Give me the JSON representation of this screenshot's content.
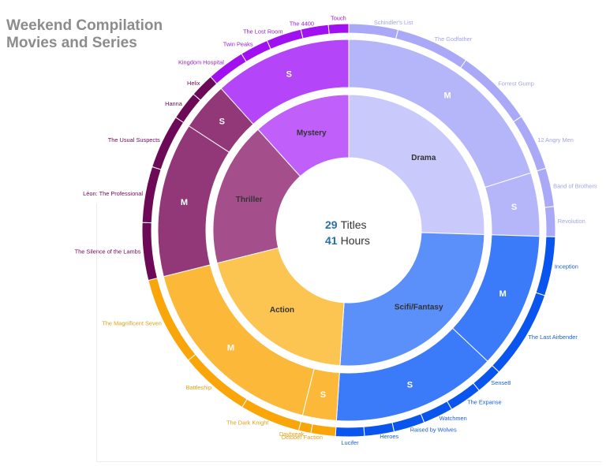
{
  "header": {
    "title_line1": "Weekend Compilation",
    "title_line2": "Movies and Series"
  },
  "center": {
    "titles_count": "29",
    "titles_label": "Titles",
    "hours_count": "41",
    "hours_label": "Hours",
    "number_color": "#2b6f9e"
  },
  "chart_data": {
    "type": "sunburst",
    "title": "Weekend Compilation Movies and Series",
    "rings": [
      "genre",
      "type",
      "title"
    ],
    "genres": [
      {
        "name": "Drama",
        "inner_color": "#c9c9fb",
        "type_color": "#b5b5fa",
        "outer_color": "#a9a9f7",
        "label_color": "#a3a3e8",
        "groups": [
          {
            "type": "M",
            "titles": [
              "Schindler's List",
              "The Godfather",
              "Forrest Gump",
              "12 Angry Men"
            ]
          },
          {
            "type": "S",
            "titles": [
              "Band of Brothers",
              "Revolution"
            ]
          }
        ]
      },
      {
        "name": "Scifi/Fantasy",
        "inner_color": "#5b8ff9",
        "type_color": "#3b7af8",
        "outer_color": "#0a55ee",
        "label_color": "#1a5fd6",
        "groups": [
          {
            "type": "M",
            "titles": [
              "Inception",
              "The Last Airbender"
            ]
          },
          {
            "type": "S",
            "titles": [
              "Sense8",
              "The Expanse",
              "Watchmen",
              "Raised by Wolves",
              "Heroes",
              "Lucifer"
            ]
          }
        ]
      },
      {
        "name": "Action",
        "inner_color": "#fcc450",
        "type_color": "#fcb838",
        "outer_color": "#faa50a",
        "label_color": "#e0a21a",
        "groups": [
          {
            "type": "S",
            "titles": [
              "October Faction",
              "Daybreak"
            ]
          },
          {
            "type": "M",
            "titles": [
              "The Dark Knight",
              "Battleship",
              "The Magnificent Seven"
            ]
          }
        ]
      },
      {
        "name": "Thriller",
        "inner_color": "#a54e8c",
        "type_color": "#923878",
        "outer_color": "#6d0a57",
        "label_color": "#6d0a57",
        "groups": [
          {
            "type": "M",
            "titles": [
              "The Silence of the Lambs",
              "Léon: The Professional",
              "The Usual Suspects"
            ]
          },
          {
            "type": "S",
            "titles": [
              "Hanna",
              "Helix"
            ]
          }
        ]
      },
      {
        "name": "Mystery",
        "inner_color": "#c05ff9",
        "type_color": "#b545f8",
        "outer_color": "#a010f0",
        "label_color": "#9a20d8",
        "groups": [
          {
            "type": "S",
            "titles": [
              "Kingdom Hospital",
              "Twin Peaks",
              "The Lost Room",
              "The 4400",
              "Touch"
            ]
          }
        ]
      }
    ],
    "genre_shares": [
      0.2551,
      0.2552,
      0.2007,
      0.1724,
      0.1166
    ],
    "type_shares": [
      [
        0.7895,
        0.2105
      ],
      [
        0.4521,
        0.5479
      ],
      [
        0.1429,
        0.8571
      ],
      [
        0.76,
        0.24
      ],
      [
        1.0
      ]
    ],
    "title_shares": [
      [
        [
          0.1905,
          0.2857,
          0.3047,
          0.2191
        ],
        [
          0.5625,
          0.4375
        ]
      ],
      [
        [
          0.4,
          0.6
        ],
        [
          0.1493,
          0.1836,
          0.1681,
          0.1732,
          0.1654,
          0.1604
        ]
      ],
      [
        [
          0.6666,
          0.3334
        ],
        [
          0.2751,
          0.3214,
          0.4035
        ]
      ],
      [
        [
          0.3433,
          0.3343,
          0.3224
        ],
        [
          0.5454,
          0.4546
        ]
      ],
      [
        [
          0.2549,
          0.1902,
          0.2353,
          0.1843,
          0.1353
        ]
      ]
    ]
  }
}
